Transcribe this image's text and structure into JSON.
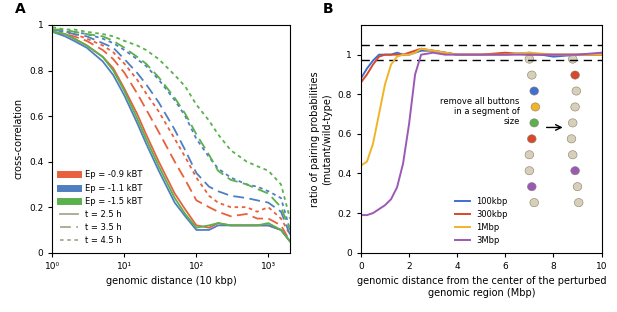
{
  "chart_data": [
    {
      "type": "line",
      "panel_label": "A",
      "x_label": "genomic distance (10 kbp)",
      "y_label": "cross-correlation",
      "log": "x",
      "legend": "lower left",
      "xlim": [
        1,
        2000
      ],
      "ylim": [
        0,
        1
      ],
      "xticks": [
        {
          "value": 1,
          "label": "10⁰"
        },
        {
          "value": 10,
          "label": "10¹"
        },
        {
          "value": 100,
          "label": "10²"
        },
        {
          "value": 1000,
          "label": "10³"
        }
      ],
      "yticks": [
        0,
        0.2,
        0.4,
        0.6,
        0.8,
        1
      ],
      "x": [
        1,
        1.5,
        2,
        3,
        5,
        7,
        10,
        15,
        20,
        30,
        50,
        70,
        100,
        150,
        200,
        300,
        500,
        700,
        1000,
        1500,
        2000
      ],
      "series": [
        {
          "name": "Ep = -0.9 kBT",
          "color": "#e8603c",
          "lines": [
            {
              "name": "t = 2.5 h",
              "line_style": "solid",
              "values": [
                0.97,
                0.96,
                0.94,
                0.91,
                0.86,
                0.81,
                0.72,
                0.61,
                0.52,
                0.4,
                0.26,
                0.19,
                0.12,
                0.11,
                0.13,
                0.12,
                0.12,
                0.12,
                0.12,
                0.1,
                0.05
              ]
            },
            {
              "name": "t = 3.5 h",
              "line_style": "dashed",
              "values": [
                0.97,
                0.96,
                0.95,
                0.93,
                0.89,
                0.85,
                0.79,
                0.7,
                0.63,
                0.53,
                0.4,
                0.32,
                0.23,
                0.2,
                0.18,
                0.16,
                0.17,
                0.15,
                0.15,
                0.12,
                0.05
              ]
            },
            {
              "name": "t = 4.5 h",
              "line_style": "dotted",
              "values": [
                0.98,
                0.97,
                0.96,
                0.94,
                0.91,
                0.88,
                0.83,
                0.76,
                0.7,
                0.62,
                0.5,
                0.42,
                0.33,
                0.25,
                0.22,
                0.2,
                0.2,
                0.18,
                0.2,
                0.15,
                0.08
              ]
            }
          ]
        },
        {
          "name": "Ep = -1.1 kBT",
          "color": "#4f7fc0",
          "lines": [
            {
              "name": "t = 2.5 h",
              "line_style": "solid",
              "values": [
                0.97,
                0.95,
                0.93,
                0.9,
                0.84,
                0.78,
                0.69,
                0.57,
                0.48,
                0.36,
                0.22,
                0.16,
                0.1,
                0.1,
                0.12,
                0.12,
                0.12,
                0.12,
                0.12,
                0.1,
                0.05
              ]
            },
            {
              "name": "t = 3.5 h",
              "line_style": "dashed",
              "values": [
                0.98,
                0.97,
                0.96,
                0.95,
                0.92,
                0.9,
                0.85,
                0.79,
                0.74,
                0.66,
                0.54,
                0.45,
                0.35,
                0.29,
                0.27,
                0.25,
                0.24,
                0.23,
                0.22,
                0.18,
                0.08
              ]
            },
            {
              "name": "t = 4.5 h",
              "line_style": "dotted",
              "values": [
                0.98,
                0.97,
                0.97,
                0.96,
                0.94,
                0.92,
                0.89,
                0.85,
                0.82,
                0.76,
                0.67,
                0.6,
                0.5,
                0.42,
                0.37,
                0.33,
                0.3,
                0.29,
                0.27,
                0.24,
                0.1
              ]
            }
          ]
        },
        {
          "name": "Ep = -1.5 kBT",
          "color": "#5bb04e",
          "lines": [
            {
              "name": "t = 2.5 h",
              "line_style": "solid",
              "values": [
                0.97,
                0.96,
                0.94,
                0.91,
                0.86,
                0.8,
                0.71,
                0.59,
                0.5,
                0.38,
                0.24,
                0.17,
                0.11,
                0.12,
                0.13,
                0.12,
                0.12,
                0.12,
                0.13,
                0.1,
                0.05
              ]
            },
            {
              "name": "t = 3.5 h",
              "line_style": "dashed",
              "values": [
                0.98,
                0.98,
                0.97,
                0.96,
                0.95,
                0.93,
                0.9,
                0.86,
                0.83,
                0.77,
                0.68,
                0.61,
                0.52,
                0.43,
                0.36,
                0.32,
                0.3,
                0.28,
                0.26,
                0.2,
                0.1
              ]
            },
            {
              "name": "t = 4.5 h",
              "line_style": "dotted",
              "values": [
                0.99,
                0.98,
                0.98,
                0.97,
                0.96,
                0.95,
                0.93,
                0.91,
                0.89,
                0.85,
                0.78,
                0.73,
                0.65,
                0.58,
                0.52,
                0.45,
                0.4,
                0.38,
                0.36,
                0.3,
                0.15
              ]
            }
          ]
        }
      ]
    },
    {
      "type": "line",
      "panel_label": "B",
      "x_label": "genomic distance from the center of the perturbed genomic region (Mbp)",
      "y_label": "ratio of pairing probabilities\n(mutant/wild-type)",
      "annotation": "remove all buttons\nin a segment of\nsize",
      "legend": "lower center",
      "xlim": [
        0,
        10
      ],
      "ylim": [
        0,
        1.15
      ],
      "xticks": [
        0,
        2,
        4,
        6,
        8,
        10
      ],
      "yticks": [
        0,
        0.2,
        0.4,
        0.6,
        0.8,
        1
      ],
      "reference_lines": [
        0.975,
        1.05
      ],
      "x": [
        0,
        0.25,
        0.5,
        0.75,
        1,
        1.25,
        1.5,
        1.75,
        2,
        2.25,
        2.5,
        3,
        3.5,
        4,
        5,
        6,
        7,
        8,
        9,
        10
      ],
      "series": [
        {
          "name": "100kbp",
          "color": "#3f6fd0",
          "values": [
            0.88,
            0.93,
            0.97,
            1.0,
            1.0,
            1.0,
            1.01,
            1.0,
            1.0,
            1.01,
            1.02,
            1.02,
            1.01,
            1.0,
            1.0,
            1.0,
            1.01,
            0.99,
            1.0,
            1.0
          ]
        },
        {
          "name": "300kbp",
          "color": "#d9482b",
          "values": [
            0.86,
            0.9,
            0.95,
            0.99,
            1.0,
            1.0,
            1.0,
            1.0,
            1.01,
            1.02,
            1.03,
            1.02,
            1.01,
            1.0,
            1.0,
            1.01,
            1.0,
            1.0,
            1.0,
            1.0
          ]
        },
        {
          "name": "1Mbp",
          "color": "#f0b429",
          "values": [
            0.44,
            0.46,
            0.55,
            0.7,
            0.85,
            0.95,
            0.99,
            1.0,
            1.0,
            1.01,
            1.03,
            1.02,
            1.01,
            1.0,
            1.0,
            1.0,
            1.01,
            1.0,
            1.0,
            1.0
          ]
        },
        {
          "name": "3Mbp",
          "color": "#9b59b6",
          "values": [
            0.19,
            0.19,
            0.2,
            0.22,
            0.24,
            0.27,
            0.33,
            0.45,
            0.65,
            0.9,
            1.0,
            1.01,
            1.0,
            1.0,
            1.0,
            1.0,
            1.0,
            1.0,
            1.0,
            1.01
          ]
        }
      ]
    }
  ]
}
